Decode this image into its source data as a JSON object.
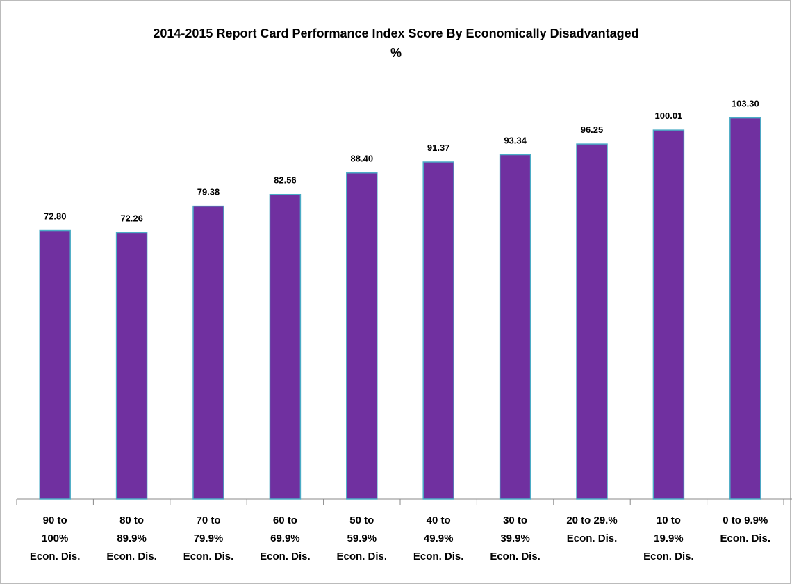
{
  "chart_data": {
    "type": "bar",
    "title": "2014-2015 Report Card Performance Index  Score By Economically Disadvantaged\n%",
    "categories": [
      "90 to\n100%\nEcon. Dis.",
      "80 to\n89.9%\nEcon. Dis.",
      "70 to\n79.9%\nEcon. Dis.",
      "60 to\n69.9%\nEcon. Dis.",
      "50 to\n59.9%\nEcon. Dis.",
      "40 to\n49.9%\nEcon. Dis.",
      "30 to\n39.9%\nEcon. Dis.",
      "20 to 29.%\nEcon. Dis.",
      "10 to\n19.9%\nEcon. Dis.",
      "0 to 9.9%\nEcon. Dis."
    ],
    "values": [
      72.8,
      72.26,
      79.38,
      82.56,
      88.4,
      91.37,
      93.34,
      96.25,
      100.01,
      103.3
    ],
    "value_labels": [
      "72.80",
      "72.26",
      "79.38",
      "82.56",
      "88.40",
      "91.37",
      "93.34",
      "96.25",
      "100.01",
      "103.30"
    ],
    "color": "#7030a0",
    "edge_color": "#4bacc6",
    "ylim": [
      0,
      120
    ]
  }
}
